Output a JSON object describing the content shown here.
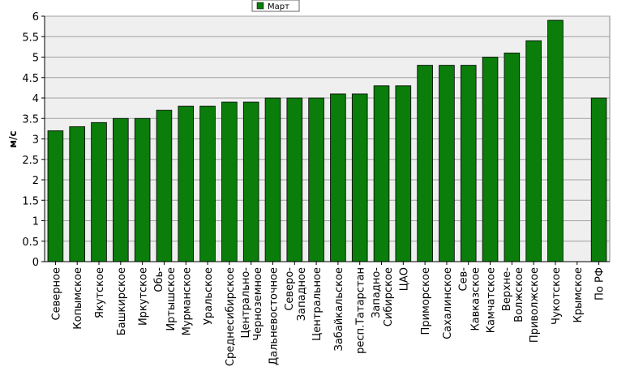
{
  "chart_data": {
    "type": "bar",
    "title": "",
    "xlabel": "",
    "ylabel": "м/с",
    "ylim": [
      0,
      6
    ],
    "yticks": [
      "0",
      "0.5",
      "1",
      "1.5",
      "2",
      "2.5",
      "3",
      "3.5",
      "4",
      "4.5",
      "5",
      "5.5",
      "6"
    ],
    "grid": true,
    "legend_position": "top-center",
    "bar_color": "#0a7d0a",
    "plot_background": "#efefef",
    "categories": [
      [
        "Северное"
      ],
      [
        "Копымское"
      ],
      [
        "Якутское"
      ],
      [
        "Башкирское"
      ],
      [
        "Иркутское"
      ],
      [
        "Обь-",
        "Иртышское"
      ],
      [
        "Мурманское"
      ],
      [
        "Уральское"
      ],
      [
        "Среднесибирское"
      ],
      [
        "Центрально-",
        "Черноземное"
      ],
      [
        "Дальневосточное"
      ],
      [
        "Северо-",
        "Западное"
      ],
      [
        "Центральное"
      ],
      [
        "Забайкальское"
      ],
      [
        "респ.Татарстан"
      ],
      [
        "Западно-",
        "Сибирское"
      ],
      [
        "ЦАО"
      ],
      [
        "Приморское"
      ],
      [
        "Сахалинское"
      ],
      [
        "Сев-",
        "Кавказское"
      ],
      [
        "Камчатское"
      ],
      [
        "Верхне-",
        "Волжское"
      ],
      [
        "Приволжское"
      ],
      [
        "Чукотское"
      ],
      [
        "Крымское"
      ],
      [
        "По РФ"
      ]
    ],
    "series": [
      {
        "name": "Март",
        "values": [
          3.2,
          3.3,
          3.4,
          3.5,
          3.5,
          3.7,
          3.8,
          3.8,
          3.9,
          3.9,
          4.0,
          4.0,
          4.0,
          4.1,
          4.1,
          4.3,
          4.3,
          4.8,
          4.8,
          4.8,
          5.0,
          5.1,
          5.4,
          5.9,
          null,
          4.0
        ]
      }
    ]
  }
}
